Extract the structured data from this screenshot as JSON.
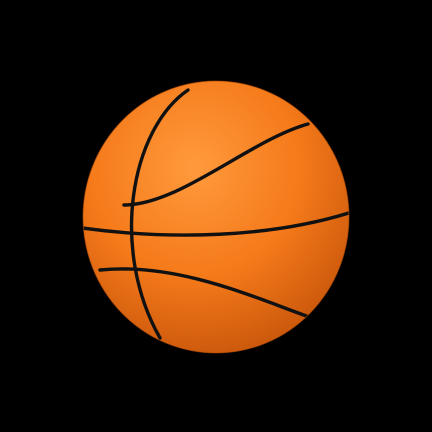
{
  "scene": {
    "subject": "basketball",
    "background_color": "#000000",
    "colors": {
      "ball_highlight": "#ff9a3c",
      "ball_mid": "#f57a1a",
      "ball_shadow": "#c9560b",
      "seam": "#111111"
    }
  }
}
